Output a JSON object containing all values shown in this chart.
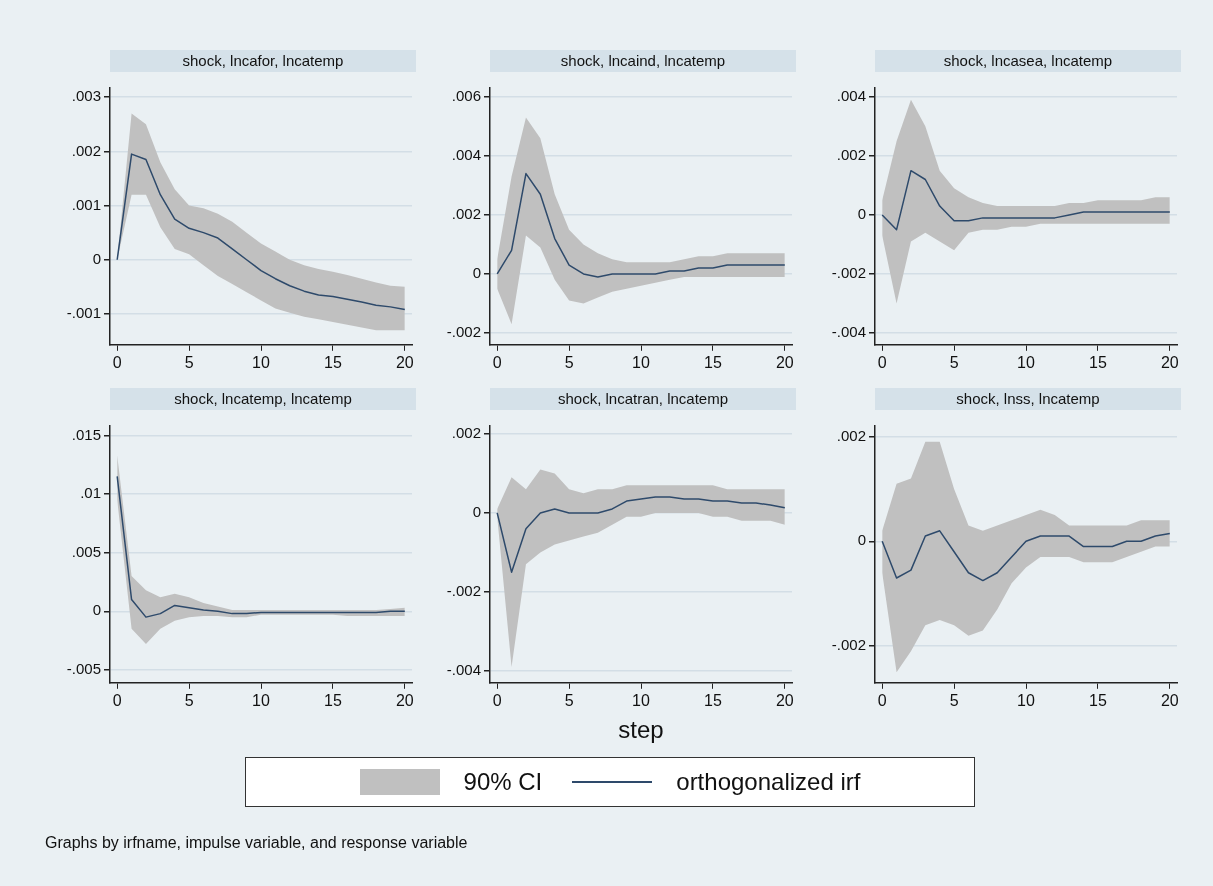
{
  "chart_data": [
    {
      "type": "line",
      "title": "shock, lncafor, lncatemp",
      "x": [
        0,
        1,
        2,
        3,
        4,
        5,
        6,
        7,
        8,
        9,
        10,
        11,
        12,
        13,
        14,
        15,
        16,
        17,
        18,
        19,
        20
      ],
      "xlim": [
        -0.5,
        20.5
      ],
      "xticks": [
        0,
        5,
        10,
        15,
        20
      ],
      "ylim": [
        -0.00157,
        0.00317
      ],
      "yticks": [
        {
          "value": -0.001,
          "label": "-.001"
        },
        {
          "value": 0,
          "label": "0"
        },
        {
          "value": 0.001,
          "label": ".001"
        },
        {
          "value": 0.002,
          "label": ".002"
        },
        {
          "value": 0.003,
          "label": ".003"
        }
      ],
      "grid": "y",
      "marker": "none",
      "series": [
        {
          "color": "#2e4a6b",
          "values": [
            0,
            0.00195,
            0.00185,
            0.0012,
            0.00075,
            0.00058,
            0.0005,
            0.0004,
            0.0002,
            0,
            -0.0002,
            -0.00035,
            -0.00048,
            -0.00058,
            -0.00065,
            -0.00068,
            -0.00073,
            -0.00078,
            -0.00084,
            -0.00087,
            -0.00092
          ],
          "upper": [
            0,
            0.0027,
            0.0025,
            0.0018,
            0.0013,
            0.001,
            0.00095,
            0.00085,
            0.0007,
            0.0005,
            0.0003,
            0.00015,
            0,
            -0.0001,
            -0.00017,
            -0.00022,
            -0.00028,
            -0.00035,
            -0.00042,
            -0.00048,
            -0.0005
          ],
          "lower": [
            0,
            0.0012,
            0.0012,
            0.0006,
            0.0002,
            0.0001,
            -0.0001,
            -0.0003,
            -0.00045,
            -0.0006,
            -0.00075,
            -0.0009,
            -0.00098,
            -0.00105,
            -0.0011,
            -0.00115,
            -0.0012,
            -0.00125,
            -0.0013,
            -0.0013,
            -0.0013
          ]
        }
      ]
    },
    {
      "type": "line",
      "title": "shock, lncaind, lncatemp",
      "x": [
        0,
        1,
        2,
        3,
        4,
        5,
        6,
        7,
        8,
        9,
        10,
        11,
        12,
        13,
        14,
        15,
        16,
        17,
        18,
        19,
        20
      ],
      "xlim": [
        -0.5,
        20.5
      ],
      "xticks": [
        0,
        5,
        10,
        15,
        20
      ],
      "ylim": [
        -0.0024,
        0.0063
      ],
      "yticks": [
        {
          "value": -0.002,
          "label": "-.002"
        },
        {
          "value": 0,
          "label": "0"
        },
        {
          "value": 0.002,
          "label": ".002"
        },
        {
          "value": 0.004,
          "label": ".004"
        },
        {
          "value": 0.006,
          "label": ".006"
        }
      ],
      "grid": "y",
      "marker": "none",
      "series": [
        {
          "color": "#2e4a6b",
          "values": [
            0,
            0.0008,
            0.0034,
            0.0027,
            0.0012,
            0.0003,
            0,
            -0.0001,
            0,
            0,
            0,
            0,
            0.0001,
            0.0001,
            0.0002,
            0.0002,
            0.0003,
            0.0003,
            0.0003,
            0.0003,
            0.0003
          ],
          "upper": [
            0.0005,
            0.0033,
            0.0053,
            0.0046,
            0.0027,
            0.0015,
            0.001,
            0.0007,
            0.0005,
            0.0004,
            0.0004,
            0.0004,
            0.0004,
            0.0005,
            0.0006,
            0.0006,
            0.0007,
            0.0007,
            0.0007,
            0.0007,
            0.0007
          ],
          "lower": [
            -0.0005,
            -0.0017,
            0.0013,
            0.0009,
            -0.0002,
            -0.0009,
            -0.001,
            -0.0008,
            -0.0006,
            -0.0005,
            -0.0004,
            -0.0003,
            -0.0002,
            -0.0001,
            -0.0001,
            -0.0001,
            -0.0001,
            -0.0001,
            -0.0001,
            -0.0001,
            -0.0001
          ]
        }
      ]
    },
    {
      "type": "line",
      "title": "shock, lncasea, lncatemp",
      "x": [
        0,
        1,
        2,
        3,
        4,
        5,
        6,
        7,
        8,
        9,
        10,
        11,
        12,
        13,
        14,
        15,
        16,
        17,
        18,
        19,
        20
      ],
      "xlim": [
        -0.5,
        20.5
      ],
      "xticks": [
        0,
        5,
        10,
        15,
        20
      ],
      "ylim": [
        -0.0044,
        0.0043
      ],
      "yticks": [
        {
          "value": -0.004,
          "label": "-.004"
        },
        {
          "value": -0.002,
          "label": "-.002"
        },
        {
          "value": 0,
          "label": "0"
        },
        {
          "value": 0.002,
          "label": ".002"
        },
        {
          "value": 0.004,
          "label": ".004"
        }
      ],
      "grid": "y",
      "marker": "none",
      "series": [
        {
          "color": "#2e4a6b",
          "values": [
            0,
            -0.0005,
            0.0015,
            0.0012,
            0.0003,
            -0.0002,
            -0.0002,
            -0.0001,
            -0.0001,
            -0.0001,
            -0.0001,
            -0.0001,
            -0.0001,
            0,
            0.0001,
            0.0001,
            0.0001,
            0.0001,
            0.0001,
            0.0001,
            0.0001
          ],
          "upper": [
            0.0005,
            0.0025,
            0.0039,
            0.003,
            0.0015,
            0.0009,
            0.0006,
            0.0004,
            0.0003,
            0.0003,
            0.0003,
            0.0003,
            0.0003,
            0.0004,
            0.0004,
            0.0005,
            0.0005,
            0.0005,
            0.0005,
            0.0006,
            0.0006
          ],
          "lower": [
            -0.0007,
            -0.003,
            -0.0009,
            -0.0006,
            -0.0009,
            -0.0012,
            -0.0006,
            -0.0005,
            -0.0005,
            -0.0004,
            -0.0004,
            -0.0003,
            -0.0003,
            -0.0003,
            -0.0003,
            -0.0003,
            -0.0003,
            -0.0003,
            -0.0003,
            -0.0003,
            -0.0003
          ]
        }
      ]
    },
    {
      "type": "line",
      "title": "shock, lncatemp, lncatemp",
      "x": [
        0,
        1,
        2,
        3,
        4,
        5,
        6,
        7,
        8,
        9,
        10,
        11,
        12,
        13,
        14,
        15,
        16,
        17,
        18,
        19,
        20
      ],
      "xlim": [
        -0.5,
        20.5
      ],
      "xticks": [
        0,
        5,
        10,
        15,
        20
      ],
      "ylim": [
        -0.0061,
        0.0158
      ],
      "yticks": [
        {
          "value": -0.005,
          "label": "-.005"
        },
        {
          "value": 0,
          "label": "0"
        },
        {
          "value": 0.005,
          "label": ".005"
        },
        {
          "value": 0.01,
          "label": ".01"
        },
        {
          "value": 0.015,
          "label": ".015"
        }
      ],
      "grid": "y",
      "marker": "none",
      "series": [
        {
          "color": "#2e4a6b",
          "values": [
            0.0115,
            0.001,
            -0.0005,
            -0.0002,
            0.0005,
            0.0003,
            0.0001,
            0,
            -0.0002,
            -0.0002,
            -0.0001,
            -0.0001,
            -0.0001,
            -0.0001,
            -0.0001,
            -0.0001,
            -0.0001,
            -0.0001,
            -0.0001,
            0,
            0
          ],
          "upper": [
            0.0133,
            0.003,
            0.0018,
            0.0012,
            0.0015,
            0.0012,
            0.0007,
            0.0004,
            0.0001,
            0.0001,
            0.0001,
            0.0001,
            0.0001,
            0.0001,
            0.0001,
            0.0001,
            0.0001,
            0.0001,
            0.0001,
            0.0002,
            0.0003
          ],
          "lower": [
            0.0095,
            -0.0015,
            -0.0028,
            -0.0015,
            -0.0008,
            -0.0005,
            -0.0004,
            -0.0004,
            -0.0005,
            -0.0005,
            -0.0003,
            -0.0003,
            -0.0003,
            -0.0003,
            -0.0003,
            -0.0003,
            -0.0004,
            -0.0004,
            -0.0004,
            -0.0004,
            -0.0004
          ]
        }
      ]
    },
    {
      "type": "line",
      "title": "shock, lncatran, lncatemp",
      "xlabel": "step",
      "legend": "bottom",
      "legend_title": "90% CI",
      "annotations": [
        "Graphs by irfname, impulse variable, and response variable"
      ],
      "x": [
        0,
        1,
        2,
        3,
        4,
        5,
        6,
        7,
        8,
        9,
        10,
        11,
        12,
        13,
        14,
        15,
        16,
        17,
        18,
        19,
        20
      ],
      "xlim": [
        -0.5,
        20.5
      ],
      "xticks": [
        0,
        5,
        10,
        15,
        20
      ],
      "ylim": [
        -0.0043,
        0.0022
      ],
      "yticks": [
        {
          "value": -0.004,
          "label": "-.004"
        },
        {
          "value": -0.002,
          "label": "-.002"
        },
        {
          "value": 0,
          "label": "0"
        },
        {
          "value": 0.002,
          "label": ".002"
        }
      ],
      "grid": "y",
      "marker": "none",
      "series": [
        {
          "name": "orthogonalized irf",
          "color": "#2e4a6b",
          "values": [
            0,
            -0.0015,
            -0.0004,
            0,
            0.0001,
            0,
            0,
            0,
            0.0001,
            0.0003,
            0.00035,
            0.0004,
            0.0004,
            0.00035,
            0.00035,
            0.0003,
            0.0003,
            0.00025,
            0.00025,
            0.0002,
            0.00013
          ],
          "upper": [
            0.0001,
            0.0009,
            0.0006,
            0.0011,
            0.001,
            0.0006,
            0.0005,
            0.0006,
            0.0006,
            0.0007,
            0.0007,
            0.0007,
            0.0007,
            0.0007,
            0.0007,
            0.0007,
            0.0006,
            0.0006,
            0.0006,
            0.0006,
            0.0006
          ],
          "lower": [
            -0.0001,
            -0.0039,
            -0.0013,
            -0.001,
            -0.0008,
            -0.0007,
            -0.0006,
            -0.0005,
            -0.0003,
            -0.0001,
            -0.0001,
            0,
            0,
            0,
            0,
            -0.0001,
            -0.0001,
            -0.0002,
            -0.0002,
            -0.0002,
            -0.0003
          ]
        }
      ]
    },
    {
      "type": "line",
      "title": "shock, lnss, lncatemp",
      "x": [
        0,
        1,
        2,
        3,
        4,
        5,
        6,
        7,
        8,
        9,
        10,
        11,
        12,
        13,
        14,
        15,
        16,
        17,
        18,
        19,
        20
      ],
      "xlim": [
        -0.5,
        20.5
      ],
      "xticks": [
        0,
        5,
        10,
        15,
        20
      ],
      "ylim": [
        -0.0027,
        0.0022
      ],
      "yticks": [
        {
          "value": -0.002,
          "label": "-.002"
        },
        {
          "value": 0,
          "label": "0"
        },
        {
          "value": 0.002,
          "label": ".002"
        }
      ],
      "grid": "y",
      "marker": "none",
      "series": [
        {
          "color": "#2e4a6b",
          "values": [
            0,
            -0.0007,
            -0.00055,
            0.0001,
            0.0002,
            -0.0002,
            -0.0006,
            -0.00075,
            -0.0006,
            -0.0003,
            0,
            0.0001,
            0.0001,
            0.0001,
            -0.0001,
            -0.0001,
            -0.0001,
            0,
            0,
            0.0001,
            0.00015
          ],
          "upper": [
            0.0002,
            0.0011,
            0.0012,
            0.0019,
            0.0019,
            0.001,
            0.0003,
            0.0002,
            0.0003,
            0.0004,
            0.0005,
            0.0006,
            0.0005,
            0.0003,
            0.0003,
            0.0003,
            0.0003,
            0.0003,
            0.0004,
            0.0004,
            0.0004
          ],
          "lower": [
            -0.0006,
            -0.0025,
            -0.0021,
            -0.0016,
            -0.0015,
            -0.0016,
            -0.0018,
            -0.0017,
            -0.0013,
            -0.0008,
            -0.0005,
            -0.0003,
            -0.0003,
            -0.0003,
            -0.0004,
            -0.0004,
            -0.0004,
            -0.0003,
            -0.0002,
            -0.0001,
            -0.0001
          ]
        }
      ]
    }
  ]
}
